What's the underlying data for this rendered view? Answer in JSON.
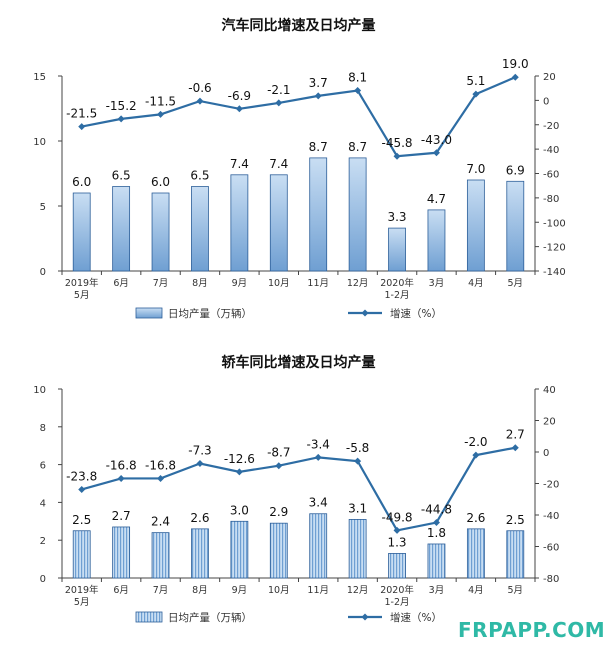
{
  "watermark": "FRPAPP.COM",
  "colors": {
    "bar_fill_top": "#c9def3",
    "bar_fill_bottom": "#6f9fd2",
    "bar_stroke": "#2d5f99",
    "line": "#2e6da4",
    "axis": "#444444"
  },
  "chart_data": [
    {
      "type": "bar",
      "title": "汽车同比增速及日均产量",
      "categories": [
        [
          "2019年",
          "5月"
        ],
        [
          "6月"
        ],
        [
          "7月"
        ],
        [
          "8月"
        ],
        [
          "9月"
        ],
        [
          "10月"
        ],
        [
          "11月"
        ],
        [
          "12月"
        ],
        [
          "2020年",
          "1-2月"
        ],
        [
          "3月"
        ],
        [
          "4月"
        ],
        [
          "5月"
        ]
      ],
      "series": [
        {
          "name": "日均产量（万辆）",
          "kind": "bar",
          "axis": "left",
          "values": [
            6.0,
            6.5,
            6.0,
            6.5,
            7.4,
            7.4,
            8.7,
            8.7,
            3.3,
            4.7,
            7.0,
            6.9
          ],
          "labels": [
            "6.0",
            "6.5",
            "6.0",
            "6.5",
            "7.4",
            "7.4",
            "8.7",
            "8.7",
            "3.3",
            "4.7",
            "7.0",
            "6.9"
          ]
        },
        {
          "name": "增速（%）",
          "kind": "line",
          "axis": "right",
          "values": [
            -21.5,
            -15.2,
            -11.5,
            -0.6,
            -6.9,
            -2.1,
            3.7,
            8.1,
            -45.8,
            -43.0,
            5.1,
            19.0
          ],
          "labels": [
            "-21.5",
            "-15.2",
            "-11.5",
            "-0.6",
            "-6.9",
            "-2.1",
            "3.7",
            "8.1",
            "-45.8",
            "-43.0",
            "5.1",
            "19.0"
          ]
        }
      ],
      "left_axis": {
        "min": 0,
        "max": 15,
        "ticks": [
          "0",
          "5",
          "10",
          "15"
        ]
      },
      "right_axis": {
        "min": -140,
        "max": 20,
        "ticks": [
          "-140",
          "-120",
          "-100",
          "-80",
          "-60",
          "-40",
          "-20",
          "0",
          "20"
        ]
      },
      "legend": [
        "日均产量（万辆）",
        "增速（%）"
      ],
      "legend_position": "bottom"
    },
    {
      "type": "bar",
      "title": "轿车同比增速及日均产量",
      "categories": [
        [
          "2019年",
          "5月"
        ],
        [
          "6月"
        ],
        [
          "7月"
        ],
        [
          "8月"
        ],
        [
          "9月"
        ],
        [
          "10月"
        ],
        [
          "11月"
        ],
        [
          "12月"
        ],
        [
          "2020年",
          "1-2月"
        ],
        [
          "3月"
        ],
        [
          "4月"
        ],
        [
          "5月"
        ]
      ],
      "series": [
        {
          "name": "日均产量（万辆）",
          "kind": "bar",
          "axis": "left",
          "values": [
            2.5,
            2.7,
            2.4,
            2.6,
            3.0,
            2.9,
            3.4,
            3.1,
            1.3,
            1.8,
            2.6,
            2.5
          ],
          "labels": [
            "2.5",
            "2.7",
            "2.4",
            "2.6",
            "3.0",
            "2.9",
            "3.4",
            "3.1",
            "1.3",
            "1.8",
            "2.6",
            "2.5"
          ]
        },
        {
          "name": "增速（%）",
          "kind": "line",
          "axis": "right",
          "values": [
            -23.8,
            -16.8,
            -16.8,
            -7.3,
            -12.6,
            -8.7,
            -3.4,
            -5.8,
            -49.8,
            -44.8,
            -2.0,
            2.7
          ],
          "labels": [
            "-23.8",
            "-16.8",
            "-16.8",
            "-7.3",
            "-12.6",
            "-8.7",
            "-3.4",
            "-5.8",
            "-49.8",
            "-44.8",
            "-2.0",
            "2.7"
          ]
        }
      ],
      "left_axis": {
        "min": 0,
        "max": 10,
        "ticks": [
          "0",
          "2",
          "4",
          "6",
          "8",
          "10"
        ]
      },
      "right_axis": {
        "min": -80,
        "max": 40,
        "ticks": [
          "-80",
          "-60",
          "-40",
          "-20",
          "0",
          "20",
          "40"
        ]
      },
      "legend": [
        "日均产量（万辆）",
        "增速（%）"
      ],
      "legend_position": "bottom"
    }
  ]
}
